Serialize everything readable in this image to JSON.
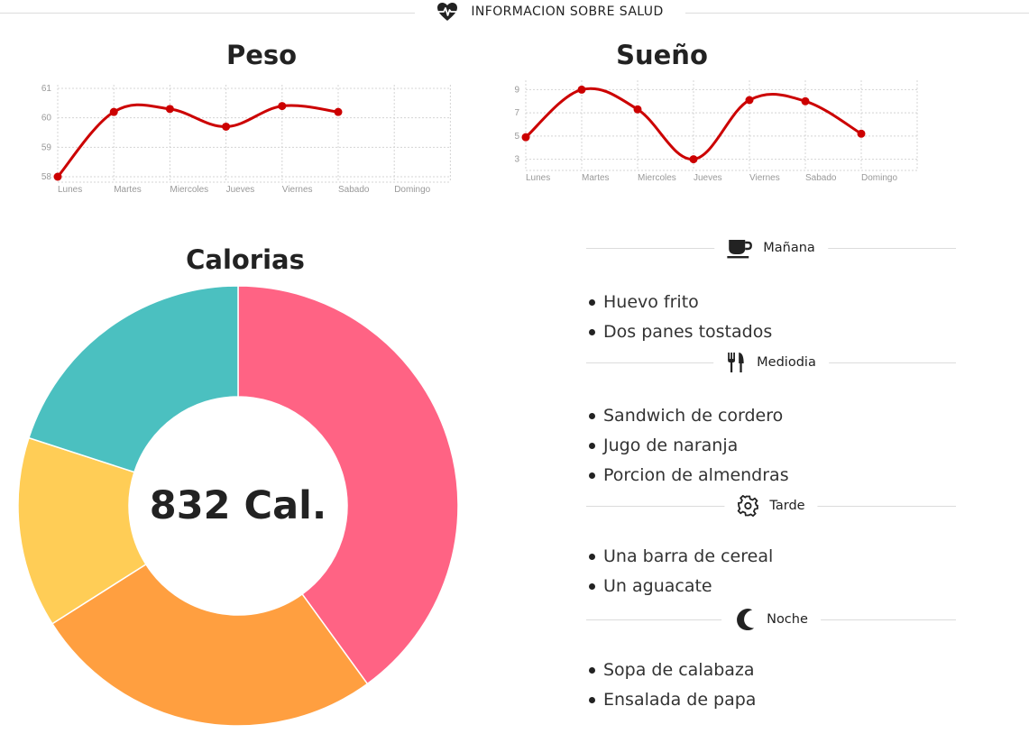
{
  "header": {
    "title": "INFORMACION SOBRE SALUD",
    "icon": "heartbeat-icon"
  },
  "chart_data": [
    {
      "id": "peso",
      "type": "line",
      "title": "Peso",
      "categories": [
        "Lunes",
        "Martes",
        "Miercoles",
        "Jueves",
        "Viernes",
        "Sabado",
        "Domingo"
      ],
      "values": [
        58,
        60.2,
        60.3,
        59.7,
        60.4,
        60.2,
        null
      ],
      "ylim": [
        58,
        61
      ],
      "yticks": [
        58,
        59,
        60,
        61
      ],
      "grid": true,
      "color": "#cc0000"
    },
    {
      "id": "sueno",
      "type": "line",
      "title": "Sueño",
      "categories": [
        "Lunes",
        "Martes",
        "Miercoles",
        "Jueves",
        "Viernes",
        "Sabado",
        "Domingo"
      ],
      "values": [
        4.9,
        9,
        7.3,
        3,
        8.1,
        8,
        5.2
      ],
      "ylim": [
        2.5,
        9.5
      ],
      "yticks": [
        3,
        5,
        7,
        9
      ],
      "grid": true,
      "color": "#cc0000"
    },
    {
      "id": "calorias",
      "type": "pie",
      "title": "Calorias",
      "center_label": "832 Cal.",
      "values": [
        40,
        26,
        14,
        20
      ],
      "colors": [
        "#ff6384",
        "#ff9f40",
        "#ffcd56",
        "#4bc0c0"
      ]
    }
  ],
  "meals": [
    {
      "label": "Mañana",
      "icon": "coffee-cup-icon",
      "items": [
        "Huevo frito",
        "Dos panes tostados"
      ]
    },
    {
      "label": "Mediodia",
      "icon": "fork-knife-icon",
      "items": [
        "Sandwich de cordero",
        "Jugo de naranja",
        "Porcion de almendras"
      ]
    },
    {
      "label": "Tarde",
      "icon": "gear-icon",
      "items": [
        "Una barra de cereal",
        "Un aguacate"
      ]
    },
    {
      "label": "Noche",
      "icon": "moon-icon",
      "items": [
        "Sopa de calabaza",
        "Ensalada de papa"
      ]
    }
  ]
}
